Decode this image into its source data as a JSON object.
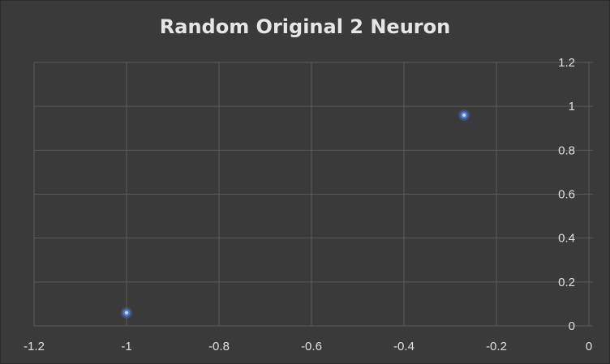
{
  "chart_data": {
    "type": "scatter",
    "title": "Random Original 2 Neuron",
    "xlabel": "",
    "ylabel": "",
    "xlim": [
      -1.2,
      0
    ],
    "ylim": [
      0,
      1.2
    ],
    "x_ticks": [
      -1.2,
      -1,
      -0.8,
      -0.6,
      -0.4,
      -0.2,
      0
    ],
    "y_ticks": [
      0,
      0.2,
      0.4,
      0.6,
      0.8,
      1,
      1.2
    ],
    "x_tick_labels": [
      "-1.2",
      "-1",
      "-0.8",
      "-0.6",
      "-0.4",
      "-0.2",
      "0"
    ],
    "y_tick_labels": [
      "0",
      "0.2",
      "0.4",
      "0.6",
      "0.8",
      "1",
      "1.2"
    ],
    "grid": true,
    "y_axis_position": "right",
    "series": [
      {
        "points": [
          {
            "x": -1.0,
            "y": 0.06
          },
          {
            "x": -0.27,
            "y": 0.96
          }
        ]
      }
    ],
    "colors": {
      "background": "#3a3a3a",
      "grid": "#595959",
      "marker": "#4f7bd2",
      "marker_center": "#c6d6f3"
    }
  }
}
